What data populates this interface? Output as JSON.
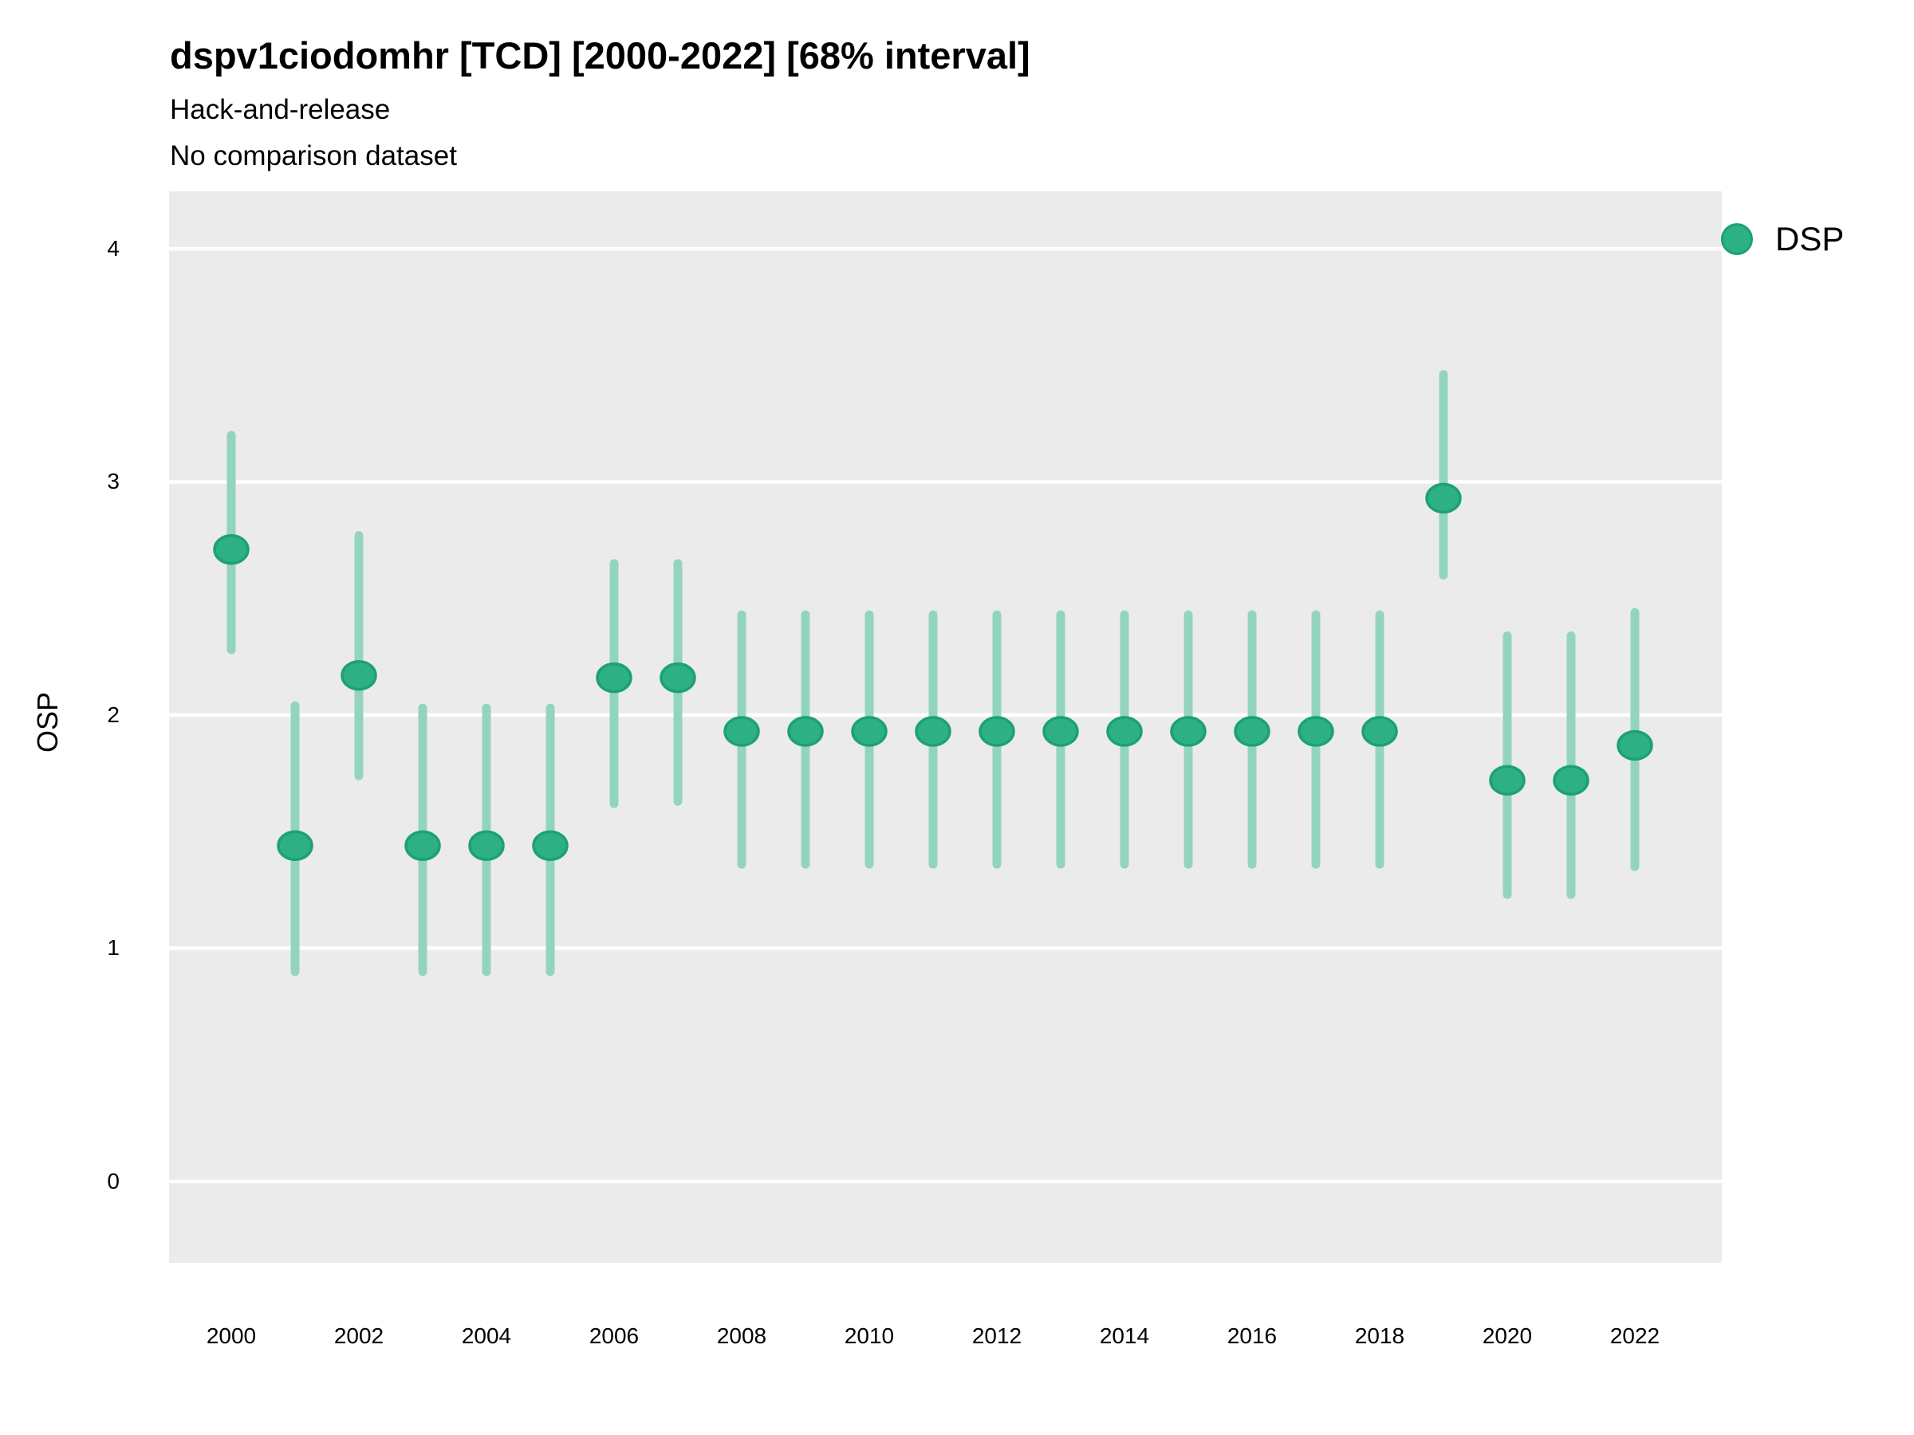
{
  "chart_data": {
    "type": "scatter",
    "variant": "pointrange-errorbar",
    "title": "dspv1ciodomhr [TCD] [2000-2022] [68% interval]",
    "subtitle1": "Hack-and-release",
    "subtitle2": "No comparison dataset",
    "xlabel": "",
    "ylabel": "OSP",
    "xlim": [
      1999.025,
      2023.3625
    ],
    "ylim": [
      -0.349,
      4.246
    ],
    "xticks": [
      2000,
      2002,
      2004,
      2006,
      2008,
      2010,
      2012,
      2014,
      2016,
      2018,
      2020,
      2022
    ],
    "yticks": [
      0,
      1,
      2,
      3,
      4
    ],
    "grid": "major-horizontal-white-on-gray",
    "legend": {
      "position": "right",
      "label": "DSP"
    },
    "series": [
      {
        "name": "DSP",
        "points": [
          {
            "year": 2000,
            "value": 2.71,
            "lo": 2.28,
            "hi": 3.2
          },
          {
            "year": 2001,
            "value": 1.44,
            "lo": 0.9,
            "hi": 2.04
          },
          {
            "year": 2002,
            "value": 2.17,
            "lo": 1.74,
            "hi": 2.77
          },
          {
            "year": 2003,
            "value": 1.44,
            "lo": 0.9,
            "hi": 2.03
          },
          {
            "year": 2004,
            "value": 1.44,
            "lo": 0.9,
            "hi": 2.03
          },
          {
            "year": 2005,
            "value": 1.44,
            "lo": 0.9,
            "hi": 2.03
          },
          {
            "year": 2006,
            "value": 2.16,
            "lo": 1.62,
            "hi": 2.65
          },
          {
            "year": 2007,
            "value": 2.16,
            "lo": 1.63,
            "hi": 2.65
          },
          {
            "year": 2008,
            "value": 1.93,
            "lo": 1.36,
            "hi": 2.43
          },
          {
            "year": 2009,
            "value": 1.93,
            "lo": 1.36,
            "hi": 2.43
          },
          {
            "year": 2010,
            "value": 1.93,
            "lo": 1.36,
            "hi": 2.43
          },
          {
            "year": 2011,
            "value": 1.93,
            "lo": 1.36,
            "hi": 2.43
          },
          {
            "year": 2012,
            "value": 1.93,
            "lo": 1.36,
            "hi": 2.43
          },
          {
            "year": 2013,
            "value": 1.93,
            "lo": 1.36,
            "hi": 2.43
          },
          {
            "year": 2014,
            "value": 1.93,
            "lo": 1.36,
            "hi": 2.43
          },
          {
            "year": 2015,
            "value": 1.93,
            "lo": 1.36,
            "hi": 2.43
          },
          {
            "year": 2016,
            "value": 1.93,
            "lo": 1.36,
            "hi": 2.43
          },
          {
            "year": 2017,
            "value": 1.93,
            "lo": 1.36,
            "hi": 2.43
          },
          {
            "year": 2018,
            "value": 1.93,
            "lo": 1.36,
            "hi": 2.43
          },
          {
            "year": 2019,
            "value": 2.93,
            "lo": 2.6,
            "hi": 3.46
          },
          {
            "year": 2020,
            "value": 1.72,
            "lo": 1.23,
            "hi": 2.34
          },
          {
            "year": 2021,
            "value": 1.72,
            "lo": 1.23,
            "hi": 2.34
          },
          {
            "year": 2022,
            "value": 1.87,
            "lo": 1.35,
            "hi": 2.44
          }
        ]
      }
    ],
    "colors": {
      "point_fill": "#2DB184",
      "point_stroke": "#1DA173",
      "interval": "#93D5BC",
      "panel_background": "#EBEBEB",
      "gridline": "#FFFFFF",
      "text": "#000000"
    }
  }
}
